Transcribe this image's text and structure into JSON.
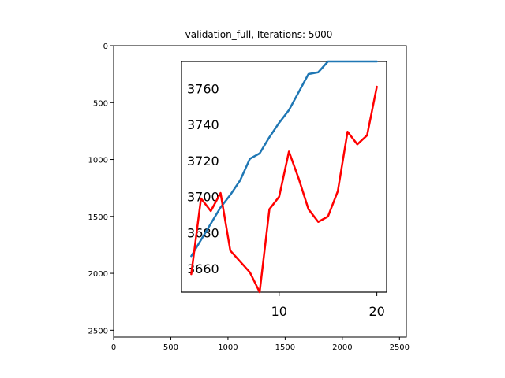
{
  "chart_data": {
    "type": "line",
    "title": "validation_full, Iterations: 5000",
    "outer_axes": {
      "x_ticks": [
        "0",
        "500",
        "1000",
        "1500",
        "2000",
        "2500"
      ],
      "y_ticks": [
        "0",
        "500",
        "1000",
        "1500",
        "2000",
        "2500"
      ],
      "xlim": [
        0,
        2560
      ],
      "ylim": [
        2560,
        0
      ],
      "y_inverted": true
    },
    "inset": {
      "xlim": [
        -0.0,
        21.0
      ],
      "ylim": [
        3647,
        3775
      ],
      "x_ticks": [
        10,
        20
      ],
      "y_ticks": [
        3660,
        3680,
        3700,
        3720,
        3740,
        3760
      ],
      "x_tick_labels": [
        "10",
        "20"
      ],
      "y_tick_labels": [
        "3660",
        "3680",
        "3700",
        "3720",
        "3740",
        "3760"
      ]
    },
    "x": [
      1,
      2,
      3,
      4,
      5,
      6,
      7,
      8,
      9,
      10,
      11,
      12,
      13,
      14,
      15,
      16,
      17,
      18,
      19,
      20
    ],
    "series": [
      {
        "color": "#1f77b4",
        "values": [
          3667,
          3676,
          3685,
          3694,
          3701,
          3709,
          3721,
          3724,
          3733,
          3741,
          3748,
          3758,
          3768,
          3769,
          3776,
          3781,
          3781,
          3781,
          3776,
          3783
        ]
      },
      {
        "color": "#ff0000",
        "values": [
          3657,
          3699,
          3692,
          3702,
          3670,
          3664,
          3658,
          3643,
          3693,
          3700,
          3725,
          3710,
          3693,
          3686,
          3689,
          3703,
          3736,
          3729,
          3734,
          3761
        ]
      }
    ]
  }
}
